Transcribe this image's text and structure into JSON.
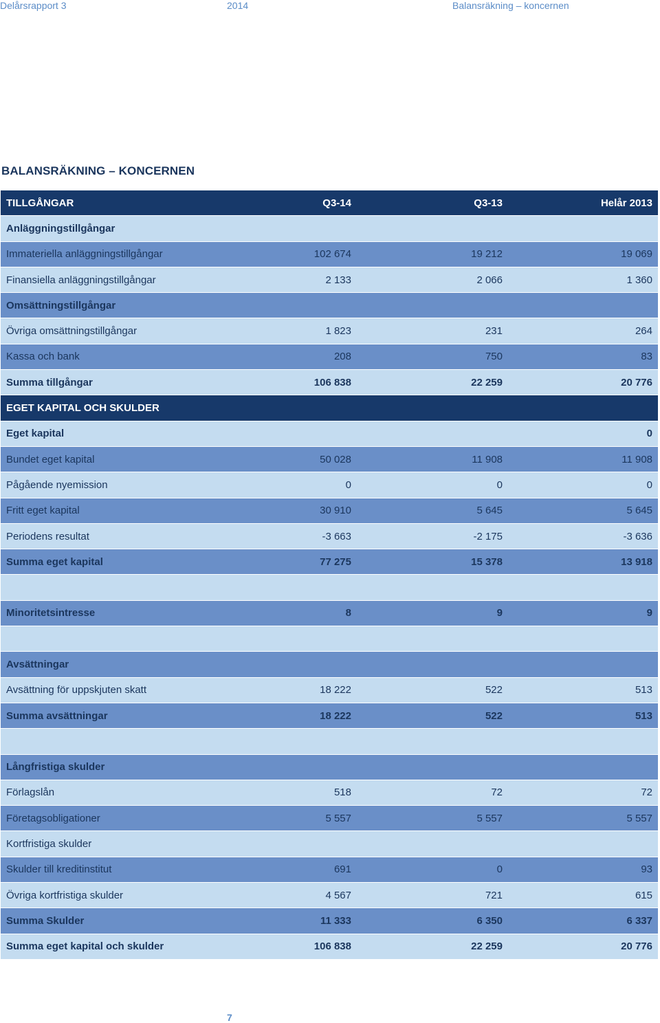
{
  "header": {
    "left": "Delårsrapport 3",
    "mid": "2014",
    "right": "Balansräkning – koncernen"
  },
  "title": "BALANSRÄKNING – KONCERNEN",
  "page_number": "7",
  "rows": [
    {
      "label": "TILLGÅNGAR",
      "c1": "Q3-14",
      "c2": "Q3-13",
      "c3": "Helår 2013",
      "style": "dark",
      "bold": true
    },
    {
      "label": "Anläggningstillgångar",
      "c1": "",
      "c2": "",
      "c3": "",
      "style": "light",
      "bold": true
    },
    {
      "label": "Immateriella anläggningstillgångar",
      "c1": "102 674",
      "c2": "19 212",
      "c3": "19 069",
      "style": "mid",
      "bold": false
    },
    {
      "label": "Finansiella anläggningstillgångar",
      "c1": "2 133",
      "c2": "2 066",
      "c3": "1 360",
      "style": "light",
      "bold": false
    },
    {
      "label": "Omsättningstillgångar",
      "c1": "",
      "c2": "",
      "c3": "",
      "style": "mid",
      "bold": true
    },
    {
      "label": "Övriga omsättningstillgångar",
      "c1": "1 823",
      "c2": "231",
      "c3": "264",
      "style": "light",
      "bold": false
    },
    {
      "label": "Kassa och bank",
      "c1": "208",
      "c2": "750",
      "c3": "83",
      "style": "mid",
      "bold": false
    },
    {
      "label": "Summa tillgångar",
      "c1": "106 838",
      "c2": "22 259",
      "c3": "20 776",
      "style": "light",
      "bold": true
    },
    {
      "label": "EGET KAPITAL OCH SKULDER",
      "c1": "",
      "c2": "",
      "c3": "",
      "style": "dark",
      "bold": true
    },
    {
      "label": "Eget kapital",
      "c1": "",
      "c2": "",
      "c3": "0",
      "style": "light",
      "bold": true
    },
    {
      "label": "Bundet eget kapital",
      "c1": "50 028",
      "c2": "11 908",
      "c3": "11 908",
      "style": "mid",
      "bold": false
    },
    {
      "label": "Pågående nyemission",
      "c1": "0",
      "c2": "0",
      "c3": "0",
      "style": "light",
      "bold": false
    },
    {
      "label": "Fritt eget kapital",
      "c1": "30 910",
      "c2": "5 645",
      "c3": "5 645",
      "style": "mid",
      "bold": false
    },
    {
      "label": "Periodens resultat",
      "c1": "-3 663",
      "c2": "-2 175",
      "c3": "-3 636",
      "style": "light",
      "bold": false
    },
    {
      "label": "Summa eget kapital",
      "c1": "77 275",
      "c2": "15 378",
      "c3": "13 918",
      "style": "mid",
      "bold": true
    },
    {
      "label": "",
      "c1": "",
      "c2": "",
      "c3": "",
      "style": "light",
      "bold": false
    },
    {
      "label": "Minoritetsintresse",
      "c1": "8",
      "c2": "9",
      "c3": "9",
      "style": "mid",
      "bold": true
    },
    {
      "label": "",
      "c1": "",
      "c2": "",
      "c3": "",
      "style": "light",
      "bold": false
    },
    {
      "label": "Avsättningar",
      "c1": "",
      "c2": "",
      "c3": "",
      "style": "mid",
      "bold": true
    },
    {
      "label": "Avsättning för uppskjuten skatt",
      "c1": "18 222",
      "c2": "522",
      "c3": "513",
      "style": "light",
      "bold": false
    },
    {
      "label": "Summa avsättningar",
      "c1": "18 222",
      "c2": "522",
      "c3": "513",
      "style": "mid",
      "bold": true
    },
    {
      "label": "",
      "c1": "",
      "c2": "",
      "c3": "",
      "style": "light",
      "bold": false
    },
    {
      "label": "Långfristiga skulder",
      "c1": "",
      "c2": "",
      "c3": "",
      "style": "mid",
      "bold": true
    },
    {
      "label": "Förlagslån",
      "c1": "518",
      "c2": "72",
      "c3": "72",
      "style": "light",
      "bold": false
    },
    {
      "label": "Företagsobligationer",
      "c1": "5 557",
      "c2": "5 557",
      "c3": "5 557",
      "style": "mid",
      "bold": false
    },
    {
      "label": "Kortfristiga skulder",
      "c1": "",
      "c2": "",
      "c3": "",
      "style": "light",
      "bold": false
    },
    {
      "label": "Skulder till kreditinstitut",
      "c1": "691",
      "c2": "0",
      "c3": "93",
      "style": "mid",
      "bold": false
    },
    {
      "label": "Övriga kortfristiga skulder",
      "c1": "4 567",
      "c2": "721",
      "c3": "615",
      "style": "light",
      "bold": false
    },
    {
      "label": "Summa Skulder",
      "c1": "11 333",
      "c2": "6 350",
      "c3": "6 337",
      "style": "mid",
      "bold": true
    },
    {
      "label": "Summa eget kapital och skulder",
      "c1": "106 838",
      "c2": "22 259",
      "c3": "20 776",
      "style": "light",
      "bold": true
    }
  ]
}
